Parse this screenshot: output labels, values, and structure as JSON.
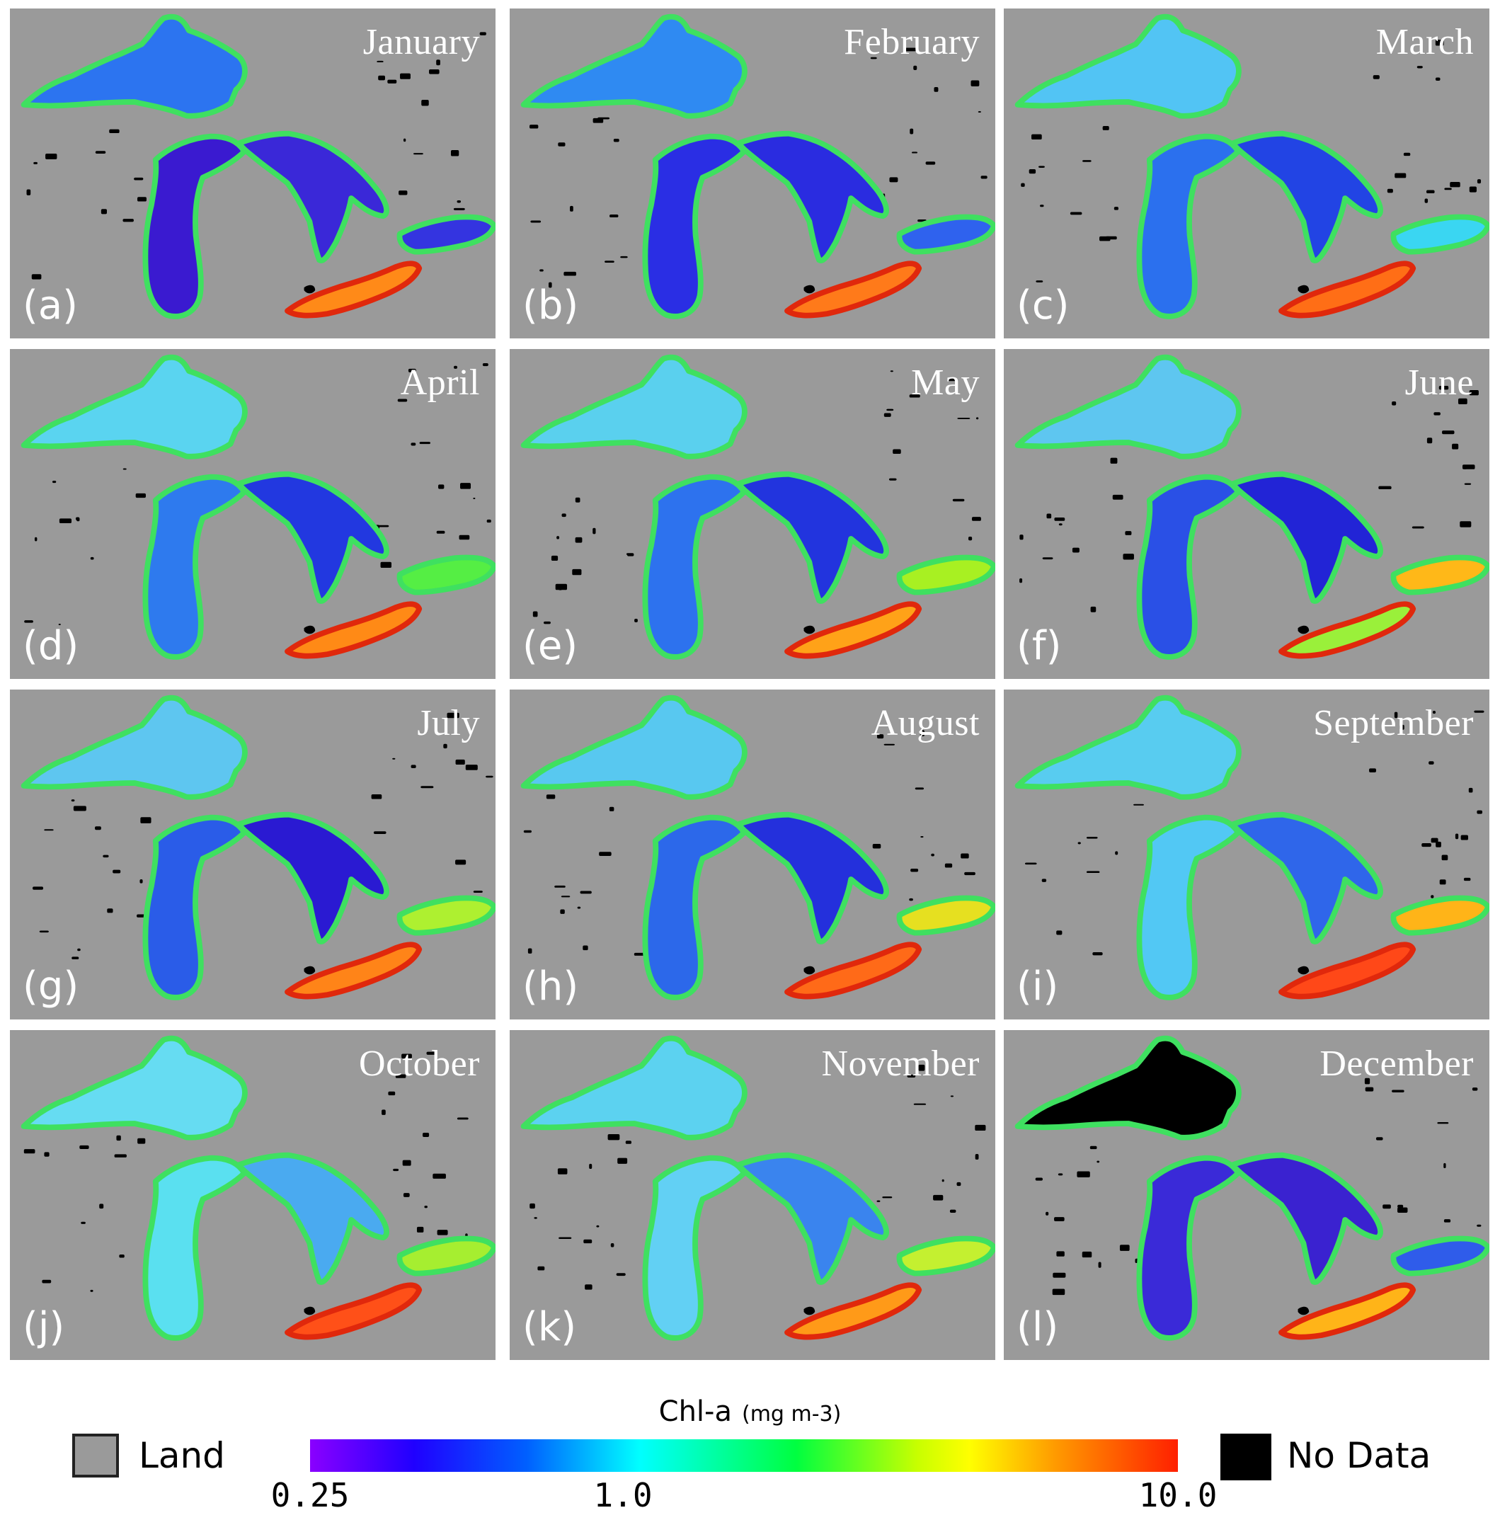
{
  "panels": [
    {
      "month": "January",
      "letter": "(a)",
      "colors": {
        "superior": "#2c74f0",
        "michigan": "#3a1ad0",
        "huron": "#3a28d8",
        "erie": "#ff8a18",
        "ontario": "#3434e0"
      }
    },
    {
      "month": "February",
      "letter": "(b)",
      "colors": {
        "superior": "#2f8af2",
        "michigan": "#2a2ee4",
        "huron": "#2a2ce0",
        "erie": "#ff7a1a",
        "ontario": "#2f62ee"
      }
    },
    {
      "month": "March",
      "letter": "(c)",
      "colors": {
        "superior": "#52c4f4",
        "michigan": "#2b70ee",
        "huron": "#2244e4",
        "erie": "#ff6e16",
        "ontario": "#3ad6f2"
      }
    },
    {
      "month": "April",
      "letter": "(d)",
      "colors": {
        "superior": "#5ad4f0",
        "michigan": "#2e7aee",
        "huron": "#2238e0",
        "erie": "#ff8a16",
        "ontario": "#55ee44"
      }
    },
    {
      "month": "May",
      "letter": "(e)",
      "colors": {
        "superior": "#5ad0ee",
        "michigan": "#2d72ee",
        "huron": "#2234de",
        "erie": "#ffa218",
        "ontario": "#a8f022"
      }
    },
    {
      "month": "June",
      "letter": "(f)",
      "colors": {
        "superior": "#5ec6f0",
        "michigan": "#2a50e6",
        "huron": "#2224d6",
        "erie": "#9af03a",
        "ontario": "#ffb818"
      }
    },
    {
      "month": "July",
      "letter": "(g)",
      "colors": {
        "superior": "#5ec6f0",
        "michigan": "#2a5ce8",
        "huron": "#2a1ad2",
        "erie": "#ff8418",
        "ontario": "#aef030"
      }
    },
    {
      "month": "August",
      "letter": "(h)",
      "colors": {
        "superior": "#58c8f0",
        "michigan": "#2c68ea",
        "huron": "#2430dc",
        "erie": "#ff6a18",
        "ontario": "#e6e020"
      }
    },
    {
      "month": "September",
      "letter": "(i)",
      "colors": {
        "superior": "#58ccf0",
        "michigan": "#52c8f4",
        "huron": "#2f66ea",
        "erie": "#ff4818",
        "ontario": "#ffb418"
      }
    },
    {
      "month": "October",
      "letter": "(j)",
      "colors": {
        "superior": "#66dcf2",
        "michigan": "#5ae0f0",
        "huron": "#4aaaf0",
        "erie": "#ff5018",
        "ontario": "#a6ee30"
      }
    },
    {
      "month": "November",
      "letter": "(k)",
      "colors": {
        "superior": "#5cd2f0",
        "michigan": "#62d0f4",
        "huron": "#3a84ee",
        "erie": "#ff9a18",
        "ontario": "#c4f030"
      }
    },
    {
      "month": "December",
      "letter": "(l)",
      "colors": {
        "superior": "#000000",
        "michigan": "#3a2ad8",
        "huron": "#3a22d0",
        "erie": "#ffb418",
        "ontario": "#2f5cea"
      }
    }
  ],
  "legend": {
    "land_label": "Land",
    "nodata_label": "No Data",
    "colorbar_title": "Chl-a",
    "colorbar_unit": "(mg m-3)",
    "ticks": [
      "0.25",
      "1.0",
      "10.0"
    ],
    "land_color": "#9a9a9a",
    "nodata_color": "#000000"
  }
}
